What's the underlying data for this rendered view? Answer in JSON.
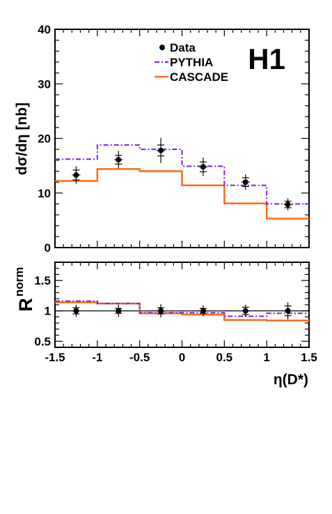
{
  "chart_data": [
    {
      "type": "line",
      "name": "cross-section",
      "ylabel": "dσ/dη [nb]",
      "ylim": [
        0,
        40
      ],
      "xlim": [
        -1.5,
        1.5
      ],
      "yticks": [
        "0",
        "10",
        "20",
        "30",
        "40"
      ],
      "experiment_label": "H1",
      "legend": {
        "placement": "top-right"
      },
      "bin_edges": [
        -1.5,
        -1.0,
        -0.5,
        0.0,
        0.5,
        1.0,
        1.5
      ],
      "series": [
        {
          "name": "Data",
          "style": "points",
          "color": "#000000",
          "x": [
            -1.25,
            -0.75,
            -0.25,
            0.25,
            0.75,
            1.25
          ],
          "y": [
            13.3,
            16.1,
            17.8,
            14.8,
            12.0,
            7.9
          ],
          "err_stat": [
            0.9,
            0.8,
            1.0,
            0.9,
            0.8,
            0.6
          ],
          "err_tot": [
            1.6,
            1.6,
            2.3,
            1.7,
            1.4,
            1.1
          ]
        },
        {
          "name": "PYTHIA",
          "style": "dash-dot-step",
          "color": "#7b1fe0",
          "values": [
            16.2,
            18.8,
            18.0,
            14.9,
            11.4,
            8.0
          ]
        },
        {
          "name": "CASCADE",
          "style": "solid-step",
          "color": "#ff6a13",
          "values": [
            12.2,
            14.4,
            14.0,
            11.4,
            8.1,
            5.3
          ]
        }
      ]
    },
    {
      "type": "line",
      "name": "ratio",
      "ylabel": "R",
      "ylabel_superscript": "norm",
      "xlabel": "η(D*)",
      "ylim": [
        0.4,
        1.8
      ],
      "xlim": [
        -1.5,
        1.5
      ],
      "yticks": [
        "0.5",
        "1",
        "1.5"
      ],
      "xticks": [
        "-1.5",
        "-1",
        "-0.5",
        "0",
        "0.5",
        "1",
        "1.5"
      ],
      "reference_line": 1,
      "bin_edges": [
        -1.5,
        -1.0,
        -0.5,
        0.0,
        0.5,
        1.0,
        1.5
      ],
      "series": [
        {
          "name": "Data",
          "style": "points",
          "color": "#000000",
          "x": [
            -1.25,
            -0.75,
            -0.25,
            0.25,
            0.75,
            1.25
          ],
          "y": [
            1.0,
            1.0,
            1.0,
            1.0,
            1.0,
            1.0
          ],
          "err_stat": [
            0.05,
            0.04,
            0.05,
            0.04,
            0.06,
            0.08
          ],
          "err_tot": [
            0.1,
            0.1,
            0.11,
            0.09,
            0.1,
            0.14
          ]
        },
        {
          "name": "PYTHIA",
          "style": "dash-dot-step",
          "color": "#7b1fe0",
          "values": [
            1.16,
            1.12,
            0.97,
            0.97,
            0.91,
            0.96
          ]
        },
        {
          "name": "CASCADE",
          "style": "solid-step",
          "color": "#ff6a13",
          "values": [
            1.14,
            1.12,
            0.96,
            0.94,
            0.85,
            0.84
          ]
        }
      ]
    }
  ]
}
